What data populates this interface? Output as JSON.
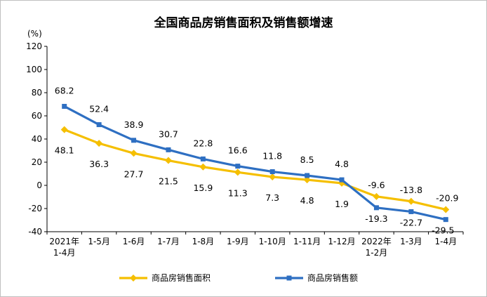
{
  "chart_data": {
    "type": "line",
    "title": "全国商品房销售面积及销售额增速",
    "ylabel": "(%)",
    "ylim": [
      -40,
      120
    ],
    "yticks": [
      120,
      100,
      80,
      60,
      40,
      20,
      0,
      -20,
      -40
    ],
    "categories": [
      [
        "2021年",
        "1-4月"
      ],
      [
        "1-5月"
      ],
      [
        "1-6月"
      ],
      [
        "1-7月"
      ],
      [
        "1-8月"
      ],
      [
        "1-9月"
      ],
      [
        "1-10月"
      ],
      [
        "1-11月"
      ],
      [
        "1-12月"
      ],
      [
        "2022年",
        "1-2月"
      ],
      [
        "1-3月"
      ],
      [
        "1-4月"
      ]
    ],
    "series": [
      {
        "name": "商品房销售面积",
        "color": "#f5bf00",
        "marker": "diamond",
        "values": [
          48.1,
          36.3,
          27.7,
          21.5,
          15.9,
          11.3,
          7.3,
          4.8,
          1.9,
          -9.6,
          -13.8,
          -20.9
        ],
        "labels": [
          "48.1",
          "36.3",
          "27.7",
          "21.5",
          "15.9",
          "11.3",
          "7.3",
          "4.8",
          "1.9",
          "-9.6",
          "-13.8",
          "-20.9"
        ]
      },
      {
        "name": "商品房销售额",
        "color": "#2e6fc2",
        "marker": "square",
        "values": [
          68.2,
          52.4,
          38.9,
          30.7,
          22.8,
          16.6,
          11.8,
          8.5,
          4.8,
          -19.3,
          -22.7,
          -29.5
        ],
        "labels": [
          "68.2",
          "52.4",
          "38.9",
          "30.7",
          "22.8",
          "16.6",
          "11.8",
          "8.5",
          "4.8",
          "-19.3",
          "-22.7",
          "-29.5"
        ]
      }
    ],
    "legend": "bottom-center",
    "grid": false
  }
}
